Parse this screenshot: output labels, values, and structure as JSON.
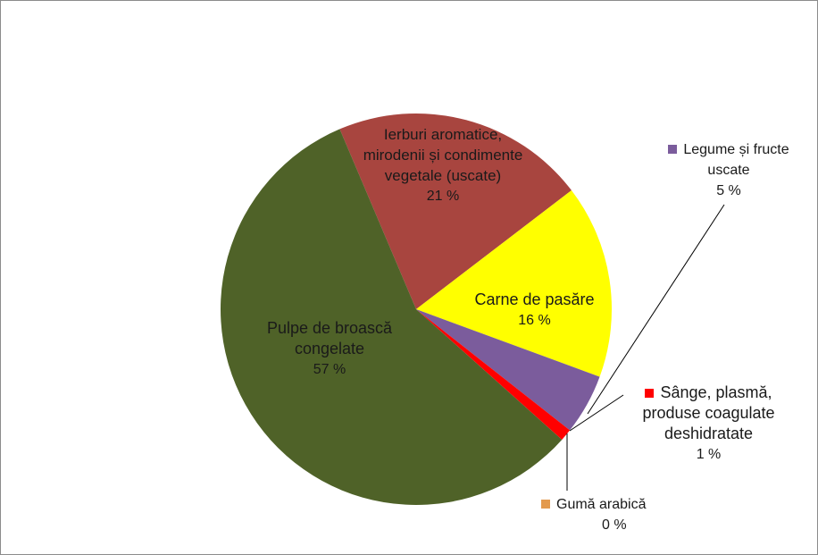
{
  "chart_data": {
    "type": "pie",
    "categories": [
      "Ierburi aromatice, mirodenii și condimente vegetale (uscate)",
      "Carne de pasăre",
      "Legume și fructe uscate",
      "Sânge, plasmă, produse coagulate deshidratate",
      "Gumă arabică",
      "Pulpe de broască congelate"
    ],
    "values": [
      21,
      16,
      5,
      1,
      0,
      57
    ],
    "value_labels": [
      "21 %",
      "16 %",
      "5 %",
      "1 %",
      "0 %",
      "57 %"
    ],
    "colors": [
      "#a8453f",
      "#ffff00",
      "#7b5c9c",
      "#ff0000",
      "#e39a4e",
      "#4f6228"
    ]
  }
}
